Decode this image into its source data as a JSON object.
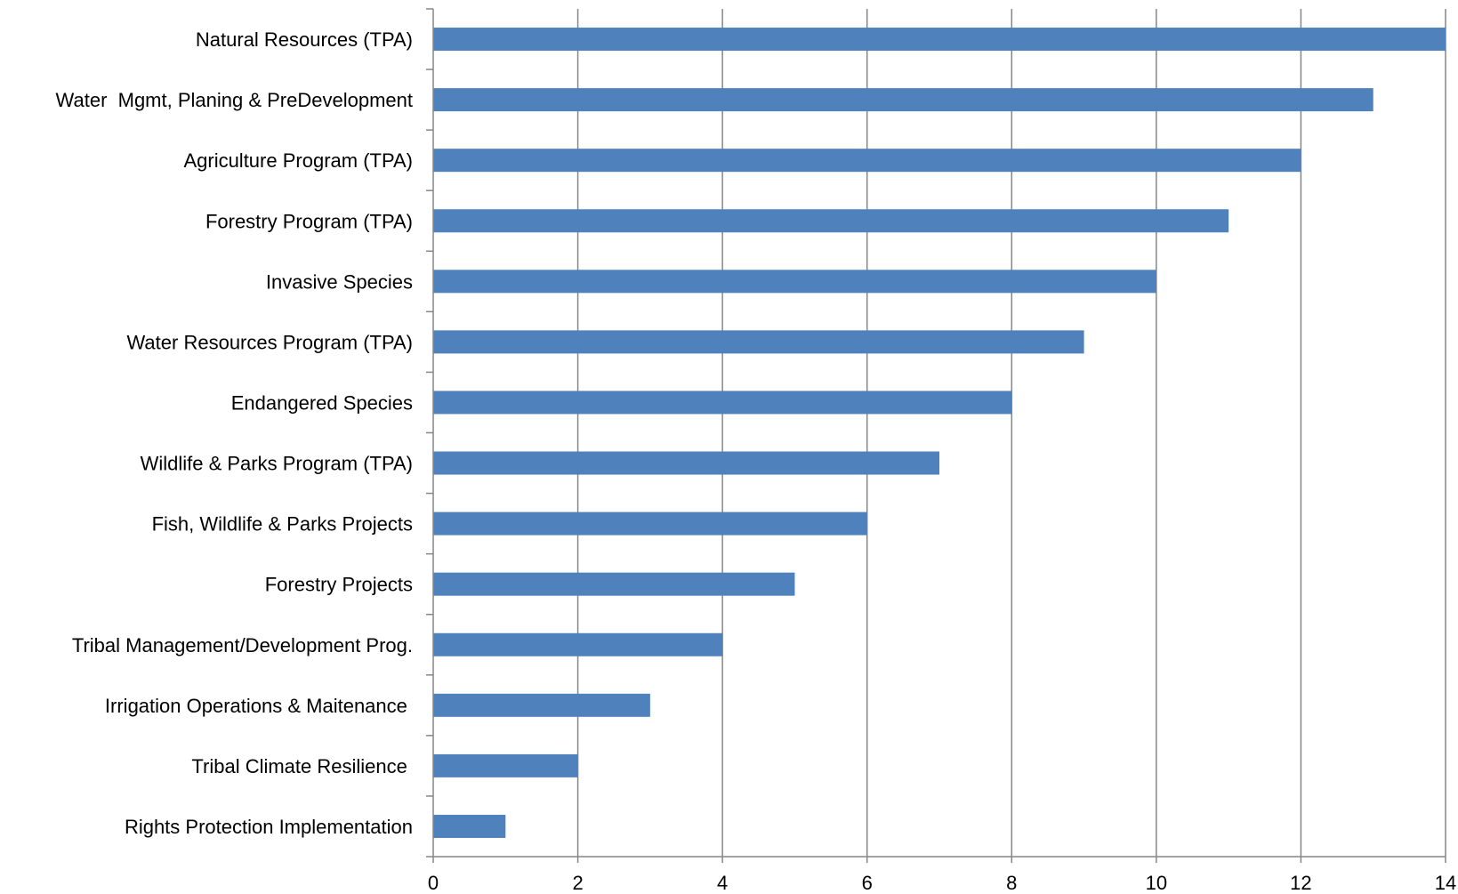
{
  "chart_data": {
    "type": "bar",
    "orientation": "horizontal",
    "title": "",
    "xlabel": "",
    "ylabel": "",
    "categories": [
      "Natural Resources (TPA)",
      "Water  Mgmt, Planing & PreDevelopment",
      "Agriculture Program (TPA)",
      "Forestry Program (TPA)",
      "Invasive Species",
      "Water Resources Program (TPA)",
      "Endangered Species",
      "Wildlife & Parks Program (TPA)",
      "Fish, Wildlife & Parks Projects",
      "Forestry Projects",
      "Tribal Management/Development Prog.",
      "Irrigation Operations & Maitenance ",
      "Tribal Climate Resilience ",
      "Rights Protection Implementation"
    ],
    "values": [
      14,
      13,
      12,
      11,
      10,
      9,
      8,
      7,
      6,
      5,
      4,
      3,
      2,
      1
    ],
    "xlim": [
      0,
      14
    ],
    "x_ticks": [
      "0",
      "2",
      "4",
      "6",
      "8",
      "10",
      "12",
      "14"
    ],
    "grid": "vertical major gridlines",
    "legend": "none",
    "colors": {
      "bar": "#4f81bd",
      "grid": "#868686",
      "axis": "#868686",
      "text": "#000000"
    }
  }
}
